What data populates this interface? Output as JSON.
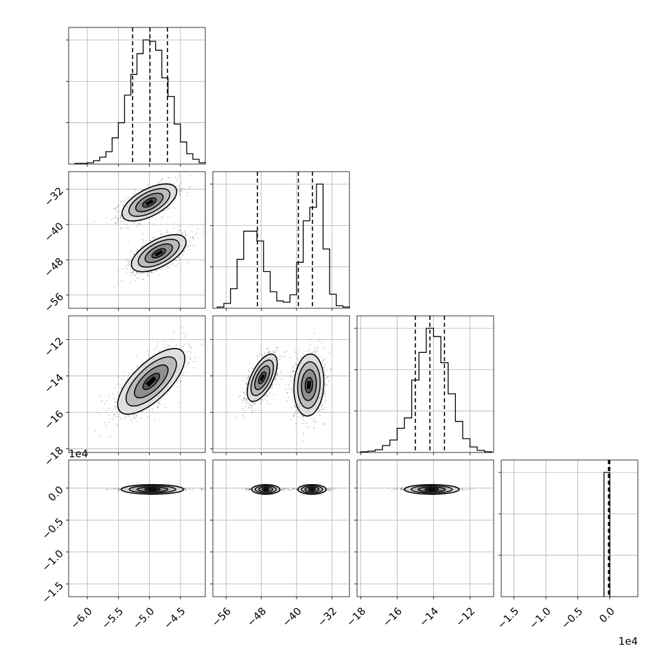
{
  "chart_data": {
    "type": "corner",
    "parameters": 4,
    "offset_labels": {
      "row_3_y": "1e4",
      "col_3_x": "1e4"
    },
    "ticks": {
      "col_0": {
        "values": [
          -6.0,
          -5.5,
          -5.0,
          -4.5
        ],
        "labels": [
          "−6.0",
          "−5.5",
          "−5.0",
          "−4.5"
        ],
        "range": [
          -6.3,
          -4.1
        ]
      },
      "col_1": {
        "values": [
          -56,
          -48,
          -40,
          -32
        ],
        "labels": [
          "−56",
          "−48",
          "−40",
          "−32"
        ],
        "range": [
          -59,
          -28
        ]
      },
      "col_2": {
        "values": [
          -18,
          -16,
          -14,
          -12
        ],
        "labels": [
          "−18",
          "−16",
          "−14",
          "−12"
        ],
        "range": [
          -18.2,
          -10.7
        ]
      },
      "col_3": {
        "values": [
          -1.5,
          -1.0,
          -0.5,
          0.0
        ],
        "labels": [
          "−1.5",
          "−1.0",
          "−0.5",
          "0.0"
        ],
        "range": [
          -1.7,
          0.44
        ]
      },
      "row_1": {
        "values": [
          -32,
          -40,
          -48,
          -56
        ],
        "labels": [
          "−32",
          "−40",
          "−48",
          "−56"
        ],
        "range": [
          -59,
          -28
        ]
      },
      "row_2": {
        "values": [
          -12,
          -14,
          -16,
          -18
        ],
        "labels": [
          "−12",
          "−14",
          "−16",
          "−18"
        ],
        "range": [
          -18.2,
          -10.7
        ]
      },
      "row_3": {
        "values": [
          0.0,
          -0.5,
          -1.0,
          -1.5
        ],
        "labels": [
          "0.0",
          "−0.5",
          "−1.0",
          "−1.5"
        ],
        "range": [
          -1.7,
          0.44
        ]
      }
    },
    "histograms": [
      {
        "param": 0,
        "bin_edges": [
          -6.2,
          -6.1,
          -6.0,
          -5.9,
          -5.8,
          -5.7,
          -5.6,
          -5.5,
          -5.4,
          -5.3,
          -5.2,
          -5.1,
          -5.0,
          -4.9,
          -4.8,
          -4.7,
          -4.6,
          -4.5,
          -4.4,
          -4.3,
          -4.2,
          -4.1
        ],
        "counts": [
          1,
          1,
          2,
          5,
          10,
          18,
          38,
          60,
          100,
          130,
          160,
          180,
          178,
          165,
          125,
          98,
          58,
          32,
          15,
          7,
          2
        ],
        "quantiles": [
          -5.27,
          -4.99,
          -4.71
        ]
      },
      {
        "param": 1,
        "bin_edges": [
          -58,
          -56.5,
          -55,
          -53.5,
          -52,
          -50.5,
          -49,
          -47.5,
          -46,
          -44.5,
          -43,
          -41.5,
          -40,
          -38.5,
          -37,
          -35.5,
          -34,
          -32.5,
          -31,
          -29.5,
          -28
        ],
        "counts": [
          2,
          8,
          32,
          80,
          126,
          126,
          110,
          60,
          27,
          12,
          10,
          22,
          75,
          143,
          165,
          203,
          97,
          23,
          4,
          2
        ],
        "quantiles": [
          -48.9,
          -39.6,
          -36.4
        ]
      },
      {
        "param": 2,
        "bin_edges": [
          -18.0,
          -17.6,
          -17.2,
          -16.8,
          -16.4,
          -16.0,
          -15.6,
          -15.2,
          -14.8,
          -14.4,
          -14.0,
          -13.6,
          -13.2,
          -12.8,
          -12.4,
          -12.0,
          -11.6,
          -11.2,
          -10.8
        ],
        "counts": [
          1,
          2,
          4,
          10,
          18,
          35,
          50,
          105,
          145,
          180,
          168,
          130,
          85,
          45,
          20,
          8,
          3,
          1
        ],
        "quantiles": [
          -15.0,
          -14.2,
          -13.4
        ]
      },
      {
        "param": 3,
        "bin_edges": [
          -0.09,
          0.0
        ],
        "counts": [
          168
        ],
        "quantiles": [
          -0.02,
          -0.005,
          0.0
        ]
      }
    ],
    "scatter_panels": [
      {
        "x_param": 0,
        "y_param": 1,
        "modes": [
          {
            "x": -5.0,
            "y": -35.0,
            "sx": 0.22,
            "sy": 2.1,
            "rho": 0.6
          },
          {
            "x": -4.85,
            "y": -46.5,
            "sx": 0.22,
            "sy": 2.1,
            "rho": 0.6
          }
        ]
      },
      {
        "x_param": 0,
        "y_param": 2,
        "modes": [
          {
            "x": -4.97,
            "y": -14.3,
            "sx": 0.27,
            "sy": 0.9,
            "rho": 0.7
          }
        ]
      },
      {
        "x_param": 1,
        "y_param": 2,
        "modes": [
          {
            "x": -47.8,
            "y": -14.1,
            "sx": 1.7,
            "sy": 0.65,
            "rho": 0.6
          },
          {
            "x": -37.2,
            "y": -14.5,
            "sx": 1.7,
            "sy": 0.85,
            "rho": 0.1
          }
        ]
      },
      {
        "x_param": 0,
        "y_param": 3,
        "modes": [
          {
            "x": -4.95,
            "y": -0.02,
            "sx": 0.25,
            "sy": 0.01,
            "rho": 0.0
          }
        ]
      },
      {
        "x_param": 1,
        "y_param": 3,
        "modes": [
          {
            "x": -47.0,
            "y": -0.02,
            "sx": 1.6,
            "sy": 0.01,
            "rho": 0.0
          },
          {
            "x": -36.5,
            "y": -0.02,
            "sx": 1.6,
            "sy": 0.01,
            "rho": 0.0
          }
        ]
      },
      {
        "x_param": 2,
        "y_param": 3,
        "modes": [
          {
            "x": -14.1,
            "y": -0.02,
            "sx": 0.75,
            "sy": 0.01,
            "rho": 0.0
          }
        ]
      }
    ],
    "grid": true,
    "colors": {
      "line": "#000000",
      "grid": "#b0b0b0",
      "points": "#555555"
    }
  }
}
